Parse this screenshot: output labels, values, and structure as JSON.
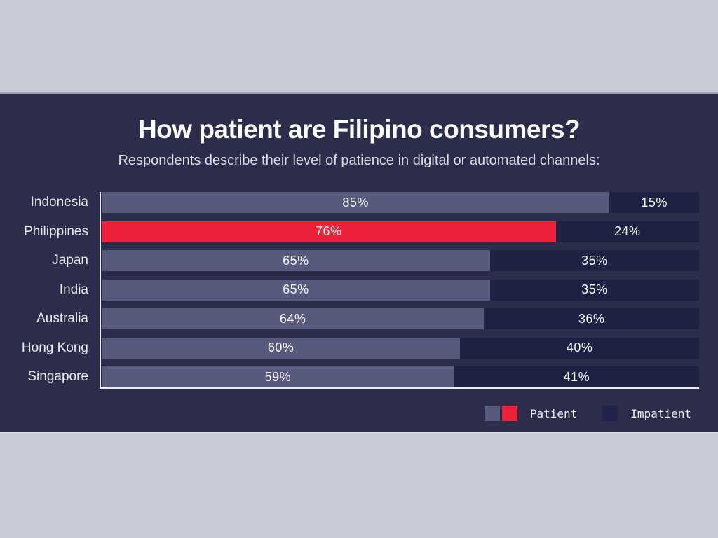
{
  "header": {
    "title": "How patient are Filipino consumers?",
    "subtitle": "Respondents describe their level of patience in digital or automated channels:"
  },
  "colors": {
    "background": "#c7cbd6",
    "panel": "#2b2d4b",
    "patient_bar": "#575a7c",
    "patient_highlight": "#ed2139",
    "impatient_bar": "#1d2142",
    "axis_line": "#edeef4",
    "legend_impatient_swatch": "#20244a"
  },
  "legend": {
    "patient_label": "Patient",
    "impatient_label": "Impatient"
  },
  "chart_data": {
    "type": "bar",
    "orientation": "horizontal",
    "stacked": true,
    "title": "How patient are Filipino consumers?",
    "subtitle": "Respondents describe their level of patience in digital or automated channels:",
    "categories": [
      "Indonesia",
      "Philippines",
      "Japan",
      "India",
      "Australia",
      "Hong Kong",
      "Singapore"
    ],
    "series": [
      {
        "name": "Patient",
        "values": [
          85,
          76,
          65,
          65,
          64,
          60,
          59
        ],
        "color": "#575a7c",
        "highlight_category": "Philippines",
        "highlight_color": "#ed2139"
      },
      {
        "name": "Impatient",
        "values": [
          15,
          24,
          35,
          35,
          36,
          40,
          41
        ],
        "color": "#1d2142"
      }
    ],
    "value_suffix": "%",
    "xlim": [
      0,
      100
    ],
    "grid": false,
    "legend_position": "bottom-right"
  }
}
